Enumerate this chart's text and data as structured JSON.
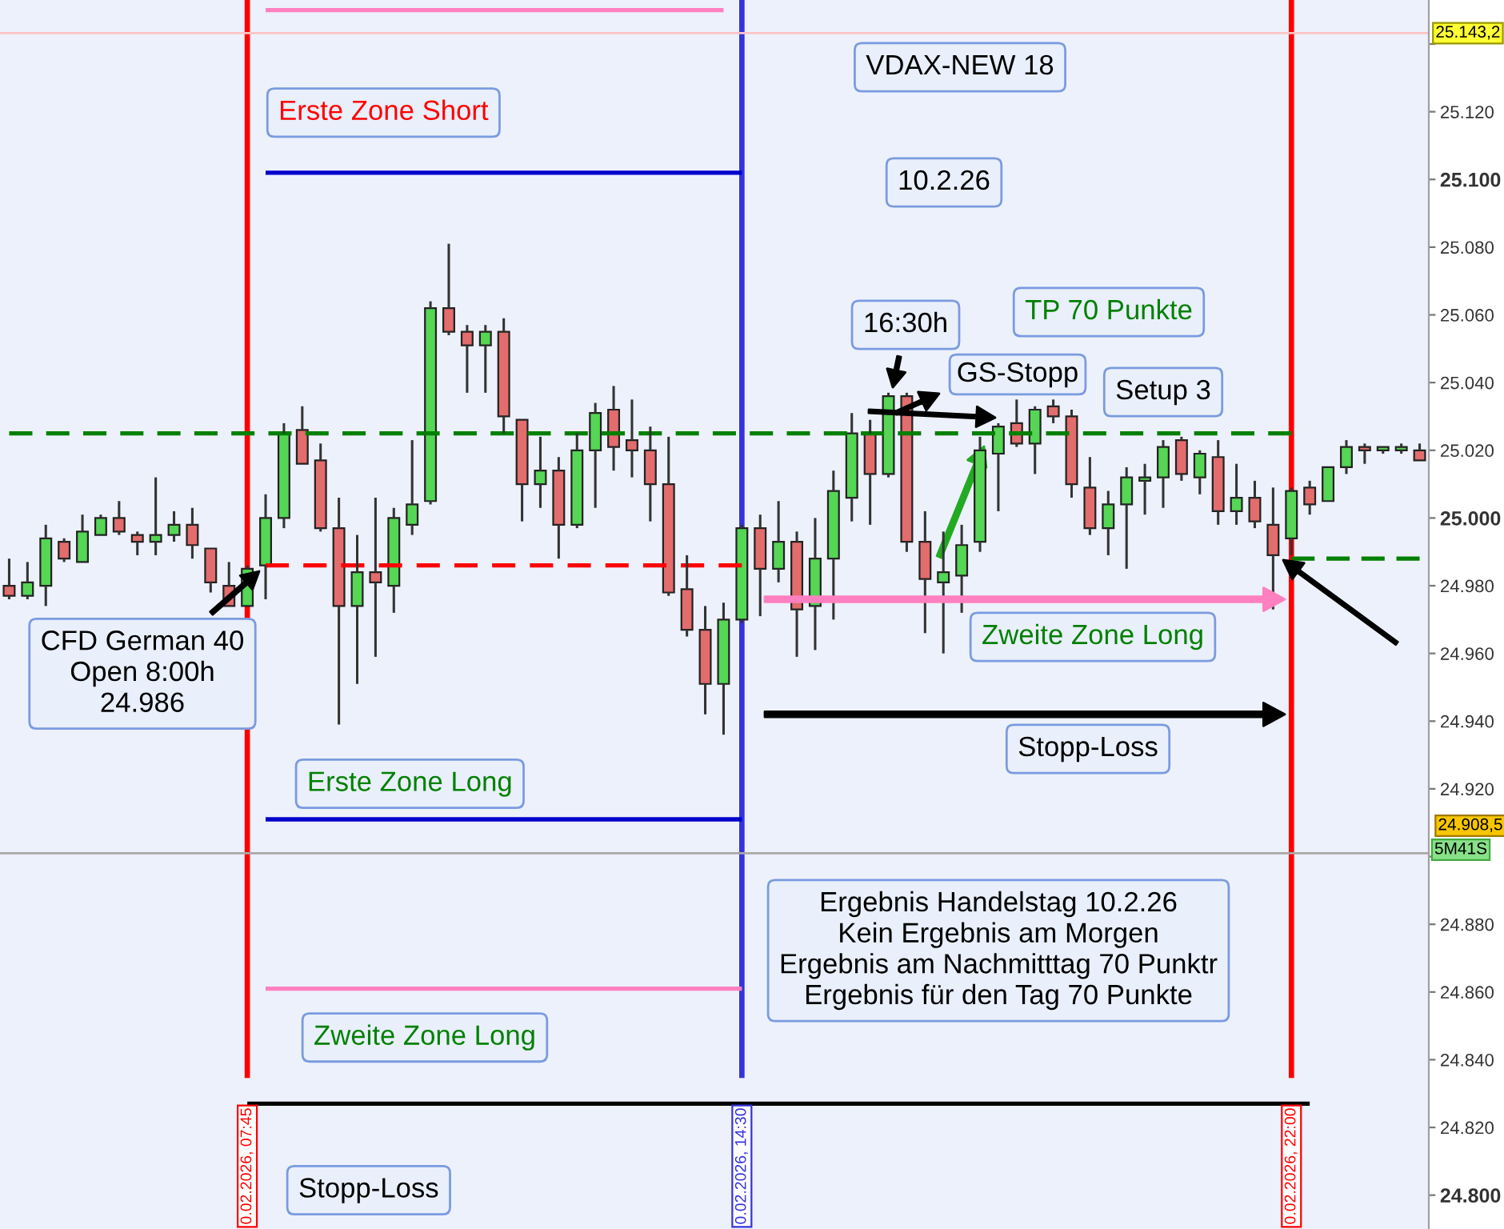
{
  "chart_data": {
    "type": "candlestick",
    "categories": [
      null,
      null,
      null,
      null,
      null,
      null,
      null,
      null,
      null,
      null,
      null,
      null,
      null,
      "0.02.2026, 07:45",
      null,
      null,
      null,
      null,
      null,
      null,
      null,
      null,
      null,
      null,
      null,
      null,
      null,
      null,
      null,
      null,
      null,
      null,
      null,
      null,
      null,
      null,
      null,
      null,
      null,
      null,
      "0.02.2026, 14:30",
      null,
      null,
      null,
      null,
      null,
      null,
      null,
      null,
      null,
      null,
      null,
      null,
      null,
      null,
      null,
      null,
      null,
      null,
      null,
      null,
      null,
      null,
      null,
      null,
      null,
      null,
      null,
      null,
      null,
      "0.02.2026, 22:00",
      null,
      null,
      null,
      null,
      null,
      null,
      null
    ],
    "ohlc": [
      [
        24.98,
        24.988,
        24.976,
        24.977
      ],
      [
        24.977,
        24.987,
        24.976,
        24.981
      ],
      [
        24.98,
        24.998,
        24.974,
        24.994
      ],
      [
        24.993,
        24.994,
        24.987,
        24.988
      ],
      [
        24.987,
        25.001,
        24.987,
        24.996
      ],
      [
        24.995,
        25.001,
        24.995,
        25.0
      ],
      [
        25.0,
        25.005,
        24.995,
        24.996
      ],
      [
        24.995,
        24.996,
        24.989,
        24.993
      ],
      [
        24.993,
        25.012,
        24.989,
        24.995
      ],
      [
        24.995,
        25.002,
        24.993,
        24.998
      ],
      [
        24.998,
        25.003,
        24.988,
        24.992
      ],
      [
        24.991,
        24.991,
        24.978,
        24.981
      ],
      [
        24.98,
        24.987,
        24.974,
        24.974
      ],
      [
        24.974,
        24.986,
        24.974,
        24.985
      ],
      [
        24.986,
        25.007,
        24.976,
        25.0
      ],
      [
        25.0,
        25.028,
        24.997,
        25.025
      ],
      [
        25.026,
        25.033,
        25.016,
        25.016
      ],
      [
        25.017,
        25.022,
        24.996,
        24.997
      ],
      [
        24.997,
        25.006,
        24.939,
        24.974
      ],
      [
        24.974,
        24.995,
        24.951,
        24.984
      ],
      [
        24.984,
        25.006,
        24.959,
        24.981
      ],
      [
        24.98,
        25.003,
        24.972,
        25.0
      ],
      [
        24.998,
        25.023,
        24.995,
        25.004
      ],
      [
        25.005,
        25.064,
        25.004,
        25.062
      ],
      [
        25.062,
        25.081,
        25.054,
        25.055
      ],
      [
        25.055,
        25.057,
        25.037,
        25.051
      ],
      [
        25.051,
        25.057,
        25.037,
        25.055
      ],
      [
        25.055,
        25.059,
        25.025,
        25.03
      ],
      [
        25.029,
        25.029,
        24.999,
        25.01
      ],
      [
        25.01,
        25.024,
        25.003,
        25.014
      ],
      [
        25.014,
        25.018,
        24.988,
        24.998
      ],
      [
        24.998,
        25.025,
        24.997,
        25.02
      ],
      [
        25.02,
        25.034,
        25.003,
        25.031
      ],
      [
        25.032,
        25.039,
        25.014,
        25.021
      ],
      [
        25.023,
        25.035,
        25.012,
        25.02
      ],
      [
        25.02,
        25.027,
        24.999,
        25.01
      ],
      [
        25.01,
        25.024,
        24.977,
        24.978
      ],
      [
        24.979,
        24.989,
        24.965,
        24.967
      ],
      [
        24.967,
        24.974,
        24.942,
        24.951
      ],
      [
        24.951,
        24.975,
        24.936,
        24.97
      ],
      [
        24.97,
        24.998,
        24.969,
        24.997
      ],
      [
        24.997,
        25.001,
        24.971,
        24.985
      ],
      [
        24.985,
        25.005,
        24.981,
        24.993
      ],
      [
        24.993,
        24.996,
        24.959,
        24.973
      ],
      [
        24.974,
        25.0,
        24.961,
        24.988
      ],
      [
        24.988,
        25.014,
        24.97,
        25.008
      ],
      [
        25.006,
        25.031,
        24.999,
        25.025
      ],
      [
        25.025,
        25.029,
        24.998,
        25.013
      ],
      [
        25.013,
        25.037,
        25.012,
        25.036
      ],
      [
        25.036,
        25.037,
        24.99,
        24.993
      ],
      [
        24.993,
        25.002,
        24.966,
        24.982
      ],
      [
        24.981,
        24.996,
        24.96,
        24.984
      ],
      [
        24.983,
        24.998,
        24.972,
        24.992
      ],
      [
        24.993,
        25.024,
        24.99,
        25.02
      ],
      [
        25.019,
        25.028,
        25.002,
        25.027
      ],
      [
        25.028,
        25.035,
        25.021,
        25.022
      ],
      [
        25.022,
        25.033,
        25.013,
        25.032
      ],
      [
        25.033,
        25.035,
        25.028,
        25.03
      ],
      [
        25.03,
        25.032,
        25.006,
        25.01
      ],
      [
        25.009,
        25.018,
        24.995,
        24.997
      ],
      [
        24.997,
        25.008,
        24.989,
        25.004
      ],
      [
        25.004,
        25.015,
        24.985,
        25.012
      ],
      [
        25.011,
        25.016,
        25.001,
        25.012
      ],
      [
        25.012,
        25.023,
        25.003,
        25.021
      ],
      [
        25.023,
        25.024,
        25.011,
        25.013
      ],
      [
        25.012,
        25.02,
        25.007,
        25.019
      ],
      [
        25.018,
        25.023,
        24.998,
        25.002
      ],
      [
        25.002,
        25.016,
        24.998,
        25.006
      ],
      [
        25.006,
        25.011,
        24.997,
        24.999
      ],
      [
        24.998,
        25.009,
        24.973,
        24.989
      ],
      [
        24.994,
        25.009,
        24.989,
        25.008
      ],
      [
        25.009,
        25.011,
        25.001,
        25.004
      ],
      [
        25.005,
        25.015,
        25.005,
        25.015
      ],
      [
        25.015,
        25.023,
        25.013,
        25.021
      ],
      [
        25.021,
        25.022,
        25.016,
        25.02
      ],
      [
        25.02,
        25.021,
        25.019,
        25.021
      ],
      [
        25.02,
        25.022,
        25.019,
        25.021
      ],
      [
        25.02,
        25.022,
        25.017,
        25.017
      ]
    ],
    "colors": [
      "#e36c6c",
      "#55d655",
      "#55d655",
      "#e36c6c",
      "#55d655",
      "#55d655",
      "#e36c6c",
      "#e36c6c",
      "#55d655",
      "#55d655",
      "#e36c6c",
      "#e36c6c",
      "#e36c6c",
      "#55d655",
      "#55d655",
      "#55d655",
      "#e36c6c",
      "#e36c6c",
      "#e36c6c",
      "#55d655",
      "#e36c6c",
      "#55d655",
      "#55d655",
      "#55d655",
      "#e36c6c",
      "#e36c6c",
      "#55d655",
      "#e36c6c",
      "#e36c6c",
      "#55d655",
      "#e36c6c",
      "#55d655",
      "#55d655",
      "#e36c6c",
      "#e36c6c",
      "#e36c6c",
      "#e36c6c",
      "#e36c6c",
      "#e36c6c",
      "#55d655",
      "#55d655",
      "#e36c6c",
      "#55d655",
      "#e36c6c",
      "#55d655",
      "#55d655",
      "#55d655",
      "#e36c6c",
      "#55d655",
      "#e36c6c",
      "#e36c6c",
      "#55d655",
      "#55d655",
      "#55d655",
      "#55d655",
      "#e36c6c",
      "#55d655",
      "#e36c6c",
      "#e36c6c",
      "#e36c6c",
      "#55d655",
      "#55d655",
      "#55d655",
      "#55d655",
      "#e36c6c",
      "#55d655",
      "#e36c6c",
      "#55d655",
      "#e36c6c",
      "#e36c6c",
      "#55d655",
      "#e36c6c",
      "#55d655",
      "#55d655",
      "#e36c6c",
      "#55d655",
      "#55d655",
      "#e36c6c"
    ],
    "series": [
      {
        "type": "line",
        "color": "#ff80c0",
        "line_style": "solid",
        "values": [
          null,
          null,
          null,
          null,
          null,
          null,
          null,
          null,
          null,
          null,
          null,
          null,
          null,
          null,
          25.15,
          25.15,
          25.15,
          25.15,
          25.15,
          25.15,
          25.15,
          25.15,
          25.15,
          25.15,
          25.15,
          25.15,
          25.15,
          25.15,
          25.15,
          25.15,
          25.15,
          25.15,
          25.15,
          25.15,
          25.15,
          25.15,
          25.15,
          25.15,
          25.15,
          25.15,
          null,
          null,
          null,
          null,
          null,
          null,
          null,
          null,
          null,
          null,
          null,
          null,
          null,
          null,
          null,
          null,
          null,
          null,
          null,
          null,
          null,
          null,
          null,
          null,
          null,
          null,
          null,
          null,
          null,
          null,
          null,
          null,
          null,
          null,
          null,
          null,
          null,
          null
        ]
      },
      {
        "type": "line",
        "name": "Erste Zone Short",
        "color": "#0000cc",
        "line_style": "solid",
        "values": [
          null,
          null,
          null,
          null,
          null,
          null,
          null,
          null,
          null,
          null,
          null,
          null,
          null,
          null,
          25.102,
          25.102,
          25.102,
          25.102,
          25.102,
          25.102,
          25.102,
          25.102,
          25.102,
          25.102,
          25.102,
          25.102,
          25.102,
          25.102,
          25.102,
          25.102,
          25.102,
          25.102,
          25.102,
          25.102,
          25.102,
          25.102,
          25.102,
          25.102,
          25.102,
          25.102,
          25.102,
          null,
          null,
          null,
          null,
          null,
          null,
          null,
          null,
          null,
          null,
          null,
          null,
          null,
          null,
          null,
          null,
          null,
          null,
          null,
          null,
          null,
          null,
          null,
          null,
          null,
          null,
          null,
          null,
          null,
          null,
          null,
          null,
          null,
          null,
          null,
          null,
          null
        ]
      },
      {
        "type": "line",
        "name": "Erste Zone Long",
        "color": "#0000cc",
        "line_style": "solid",
        "values": [
          null,
          null,
          null,
          null,
          null,
          null,
          null,
          null,
          null,
          null,
          null,
          null,
          null,
          null,
          24.911,
          24.911,
          24.911,
          24.911,
          24.911,
          24.911,
          24.911,
          24.911,
          24.911,
          24.911,
          24.911,
          24.911,
          24.911,
          24.911,
          24.911,
          24.911,
          24.911,
          24.911,
          24.911,
          24.911,
          24.911,
          24.911,
          24.911,
          24.911,
          24.911,
          24.911,
          24.911,
          null,
          null,
          null,
          null,
          null,
          null,
          null,
          null,
          null,
          null,
          null,
          null,
          null,
          null,
          null,
          null,
          null,
          null,
          null,
          null,
          null,
          null,
          null,
          null,
          null,
          null,
          null,
          null,
          null,
          null,
          null,
          null,
          null,
          null,
          null,
          null,
          null
        ]
      },
      {
        "type": "line",
        "name": "Zweite Zone Long",
        "color": "#ff80c0",
        "line_style": "solid",
        "values": [
          null,
          null,
          null,
          null,
          null,
          null,
          null,
          null,
          null,
          null,
          null,
          null,
          null,
          null,
          24.861,
          24.861,
          24.861,
          24.861,
          24.861,
          24.861,
          24.861,
          24.861,
          24.861,
          24.861,
          24.861,
          24.861,
          24.861,
          24.861,
          24.861,
          24.861,
          24.861,
          24.861,
          24.861,
          24.861,
          24.861,
          24.861,
          24.861,
          24.861,
          24.861,
          24.861,
          24.861,
          null,
          null,
          null,
          null,
          null,
          null,
          null,
          null,
          null,
          null,
          null,
          null,
          null,
          null,
          null,
          null,
          null,
          null,
          null,
          null,
          null,
          null,
          null,
          null,
          null,
          null,
          null,
          null,
          null,
          null,
          null,
          null,
          null,
          null,
          null,
          null,
          null
        ]
      },
      {
        "type": "line",
        "name": "Stopp-Loss",
        "color": "#000000",
        "line_style": "solid",
        "values": [
          null,
          null,
          null,
          null,
          null,
          null,
          null,
          null,
          null,
          null,
          null,
          null,
          null,
          24.827,
          24.827,
          24.827,
          24.827,
          24.827,
          24.827,
          24.827,
          24.827,
          24.827,
          24.827,
          24.827,
          24.827,
          24.827,
          24.827,
          24.827,
          24.827,
          24.827,
          24.827,
          24.827,
          24.827,
          24.827,
          24.827,
          24.827,
          24.827,
          24.827,
          24.827,
          24.827,
          24.827,
          24.827,
          24.827,
          24.827,
          24.827,
          24.827,
          24.827,
          24.827,
          24.827,
          24.827,
          24.827,
          24.827,
          24.827,
          24.827,
          24.827,
          24.827,
          24.827,
          24.827,
          24.827,
          24.827,
          24.827,
          24.827,
          24.827,
          24.827,
          24.827,
          24.827,
          24.827,
          24.827,
          24.827,
          24.827,
          24.827,
          24.827,
          null,
          null,
          null,
          null,
          null,
          null
        ]
      },
      {
        "type": "line",
        "color": "#ff0000",
        "line_style": "dashed",
        "values": [
          null,
          null,
          null,
          null,
          null,
          null,
          null,
          null,
          null,
          null,
          null,
          null,
          null,
          null,
          24.986,
          24.986,
          24.986,
          24.986,
          24.986,
          24.986,
          24.986,
          24.986,
          24.986,
          24.986,
          24.986,
          24.986,
          24.986,
          24.986,
          24.986,
          24.986,
          24.986,
          24.986,
          24.986,
          24.986,
          24.986,
          24.986,
          24.986,
          24.986,
          24.986,
          24.986,
          24.986,
          null,
          null,
          null,
          null,
          null,
          null,
          null,
          null,
          null,
          null,
          null,
          null,
          null,
          null,
          null,
          null,
          null,
          null,
          null,
          null,
          null,
          null,
          null,
          null,
          null,
          null,
          null,
          null,
          null,
          null,
          null,
          null,
          null,
          null,
          null,
          null,
          null
        ]
      },
      {
        "type": "line",
        "color": "#008000",
        "line_style": "dashed",
        "values": [
          25.025,
          25.025,
          25.025,
          25.025,
          25.025,
          25.025,
          25.025,
          25.025,
          25.025,
          25.025,
          25.025,
          25.025,
          25.025,
          25.025,
          25.025,
          25.025,
          25.025,
          25.025,
          25.025,
          25.025,
          25.025,
          25.025,
          25.025,
          25.025,
          25.025,
          25.025,
          25.025,
          25.025,
          25.025,
          25.025,
          25.025,
          25.025,
          25.025,
          25.025,
          25.025,
          25.025,
          25.025,
          25.025,
          25.025,
          25.025,
          25.025,
          25.025,
          25.025,
          25.025,
          25.025,
          25.025,
          25.025,
          25.025,
          25.025,
          25.025,
          25.025,
          25.025,
          25.025,
          25.025,
          25.025,
          25.025,
          25.025,
          25.025,
          25.025,
          25.025,
          25.025,
          25.025,
          25.025,
          25.025,
          25.025,
          25.025,
          25.025,
          25.025,
          25.025,
          25.025,
          25.025,
          null,
          null,
          null,
          null,
          null,
          null,
          null
        ]
      },
      {
        "type": "line",
        "color": "#008000",
        "line_style": "dashed",
        "values": [
          null,
          null,
          null,
          null,
          null,
          null,
          null,
          null,
          null,
          null,
          null,
          null,
          null,
          null,
          null,
          null,
          null,
          null,
          null,
          null,
          null,
          null,
          null,
          null,
          null,
          null,
          null,
          null,
          null,
          null,
          null,
          null,
          null,
          null,
          null,
          null,
          null,
          null,
          null,
          null,
          null,
          null,
          null,
          null,
          null,
          null,
          null,
          null,
          null,
          null,
          null,
          null,
          null,
          null,
          null,
          null,
          null,
          null,
          null,
          null,
          null,
          null,
          null,
          null,
          null,
          null,
          null,
          null,
          null,
          null,
          24.988,
          24.988,
          24.988,
          24.988,
          24.988,
          24.988,
          24.988,
          24.988
        ]
      }
    ],
    "ref_lines": [
      {
        "axis": "x",
        "value": "0.02.2026, 07:45",
        "color": "#ff0000"
      },
      {
        "axis": "x",
        "value": "0.02.2026, 14:30",
        "color": "#3333dd"
      },
      {
        "axis": "x",
        "value": "0.02.2026, 22:00",
        "color": "#ff0000"
      },
      {
        "axis": "y",
        "value": 25.1432,
        "label": "25.143,2",
        "color": "#ffc4c4"
      },
      {
        "axis": "y",
        "value": 24.901,
        "color": "#a8a8a8"
      }
    ],
    "annotations": [
      "VDAX-NEW 18",
      "10.2.26",
      "16:30h",
      "GS-Stopp",
      "TP 70 Punkte",
      "Setup 3",
      "CFD German 40\nOpen 8:00h\n24.986",
      "Ergebnis Handelstag 10.2.26\nKein Ergebnis am Morgen\nErgebnis am Nachmitttag 70 Punktr\nErgebnis für den Tag 70 Punkte",
      "24.908,5",
      "5M41S",
      "Zweite Zone Long",
      "Stopp-Loss"
    ],
    "ylim": [
      24.79,
      25.153
    ],
    "yticks": [
      {
        "value": 24.8,
        "label": "24.800"
      },
      {
        "value": 24.82,
        "label": "24.820"
      },
      {
        "value": 24.84,
        "label": "24.840"
      },
      {
        "value": 24.86,
        "label": "24.860"
      },
      {
        "value": 24.88,
        "label": "24.880"
      },
      {
        "value": 24.9,
        "label": null
      },
      {
        "value": 24.92,
        "label": "24.920"
      },
      {
        "value": 24.94,
        "label": "24.940"
      },
      {
        "value": 24.96,
        "label": "24.960"
      },
      {
        "value": 24.98,
        "label": "24.980"
      },
      {
        "value": 25.0,
        "label": "25.000"
      },
      {
        "value": 25.02,
        "label": "25.020"
      },
      {
        "value": 25.04,
        "label": "25.040"
      },
      {
        "value": 25.06,
        "label": "25.060"
      },
      {
        "value": 25.08,
        "label": "25.080"
      },
      {
        "value": 25.1,
        "label": "25.100"
      },
      {
        "value": 25.12,
        "label": "25.120"
      },
      {
        "value": 25.14,
        "label": null
      }
    ]
  }
}
